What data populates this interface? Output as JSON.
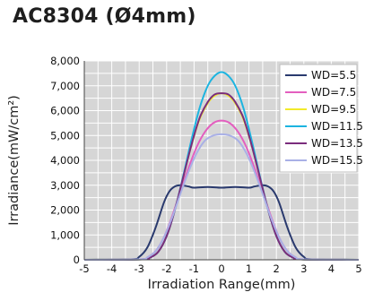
{
  "title": "AC8304 (Ø4mm)",
  "chart_data": {
    "type": "line",
    "xlabel": "Irradiation Range(mm)",
    "ylabel": "Irradiance(mW/cm²)",
    "xlim": [
      -5,
      5
    ],
    "ylim": [
      0,
      8000
    ],
    "xticks": [
      -5,
      -4,
      -3,
      -2,
      -1,
      0,
      1,
      2,
      3,
      4,
      5
    ],
    "xtick_labels": [
      "-5",
      "-4",
      "-3",
      "-2",
      "-1",
      "0",
      "1",
      "2",
      "3",
      "4",
      "5"
    ],
    "yticks": [
      0,
      1000,
      2000,
      3000,
      4000,
      5000,
      6000,
      7000,
      8000
    ],
    "ytick_labels": [
      "0",
      "1,000",
      "2,000",
      "3,000",
      "4,000",
      "5,000",
      "6,000",
      "7,000",
      "8,000"
    ],
    "grid": true,
    "plot_background": "#d6d6d6",
    "grid_color": "#ffffff",
    "legend_position": "top-right",
    "series": [
      {
        "name": "WD=5.5",
        "color": "#2a3a6e",
        "x": [
          -5,
          -3.3,
          -3,
          -2.7,
          -2.4,
          -2.1,
          -1.9,
          -1.7,
          -1.5,
          -1.2,
          -1,
          -0.5,
          0,
          0.5,
          1,
          1.2,
          1.5,
          1.7,
          1.9,
          2.1,
          2.4,
          2.7,
          3,
          3.3,
          5
        ],
        "y": [
          0,
          20,
          120,
          500,
          1300,
          2300,
          2750,
          2950,
          3000,
          2950,
          2900,
          2930,
          2900,
          2930,
          2900,
          2950,
          3000,
          2950,
          2750,
          2300,
          1300,
          500,
          120,
          20,
          0
        ]
      },
      {
        "name": "WD=7.5",
        "color": "#e35fbf",
        "x": [
          -5,
          -3,
          -2.7,
          -2.4,
          -2.1,
          -1.8,
          -1.5,
          -1.2,
          -0.9,
          -0.6,
          -0.3,
          0,
          0.3,
          0.6,
          0.9,
          1.2,
          1.5,
          1.8,
          2.1,
          2.4,
          2.7,
          3,
          5
        ],
        "y": [
          0,
          20,
          100,
          350,
          900,
          1750,
          2750,
          3700,
          4550,
          5150,
          5500,
          5600,
          5500,
          5150,
          4550,
          3700,
          2750,
          1750,
          900,
          350,
          100,
          20,
          0
        ]
      },
      {
        "name": "WD=9.5",
        "color": "#f2ea2a",
        "x": [
          -5,
          -2.9,
          -2.6,
          -2.3,
          -2,
          -1.7,
          -1.4,
          -1.1,
          -0.8,
          -0.5,
          -0.25,
          0,
          0.25,
          0.5,
          0.8,
          1.1,
          1.4,
          1.7,
          2,
          2.3,
          2.6,
          2.9,
          5
        ],
        "y": [
          0,
          20,
          90,
          330,
          950,
          2000,
          3300,
          4600,
          5650,
          6300,
          6600,
          6700,
          6600,
          6300,
          5650,
          4600,
          3300,
          2000,
          950,
          330,
          90,
          20,
          0
        ]
      },
      {
        "name": "WD=11.5",
        "color": "#1cb4e0",
        "x": [
          -5,
          -2.9,
          -2.6,
          -2.3,
          -2,
          -1.7,
          -1.4,
          -1.1,
          -0.8,
          -0.5,
          -0.25,
          0,
          0.25,
          0.5,
          0.8,
          1.1,
          1.4,
          1.7,
          2,
          2.3,
          2.6,
          2.9,
          5
        ],
        "y": [
          0,
          20,
          90,
          330,
          950,
          2000,
          3350,
          4800,
          6100,
          7000,
          7400,
          7550,
          7400,
          7000,
          6100,
          4800,
          3350,
          2000,
          950,
          330,
          90,
          20,
          0
        ]
      },
      {
        "name": "WD=13.5",
        "color": "#7a2d7d",
        "x": [
          -5,
          -2.9,
          -2.6,
          -2.3,
          -2,
          -1.7,
          -1.4,
          -1.1,
          -0.8,
          -0.5,
          -0.25,
          0,
          0.25,
          0.5,
          0.8,
          1.1,
          1.4,
          1.7,
          2,
          2.3,
          2.6,
          2.9,
          5
        ],
        "y": [
          0,
          20,
          90,
          330,
          950,
          2000,
          3300,
          4600,
          5700,
          6350,
          6650,
          6700,
          6650,
          6350,
          5700,
          4600,
          3300,
          2000,
          950,
          330,
          90,
          20,
          0
        ]
      },
      {
        "name": "WD=15.5",
        "color": "#a9b0e6",
        "x": [
          -5,
          -3,
          -2.7,
          -2.4,
          -2.1,
          -1.8,
          -1.5,
          -1.2,
          -0.9,
          -0.6,
          -0.3,
          0,
          0.3,
          0.6,
          0.9,
          1.2,
          1.5,
          1.8,
          2.1,
          2.4,
          2.7,
          3,
          5
        ],
        "y": [
          0,
          20,
          100,
          350,
          900,
          1700,
          2650,
          3550,
          4300,
          4800,
          5000,
          5050,
          5000,
          4800,
          4300,
          3550,
          2650,
          1700,
          900,
          350,
          100,
          20,
          0
        ]
      }
    ]
  }
}
